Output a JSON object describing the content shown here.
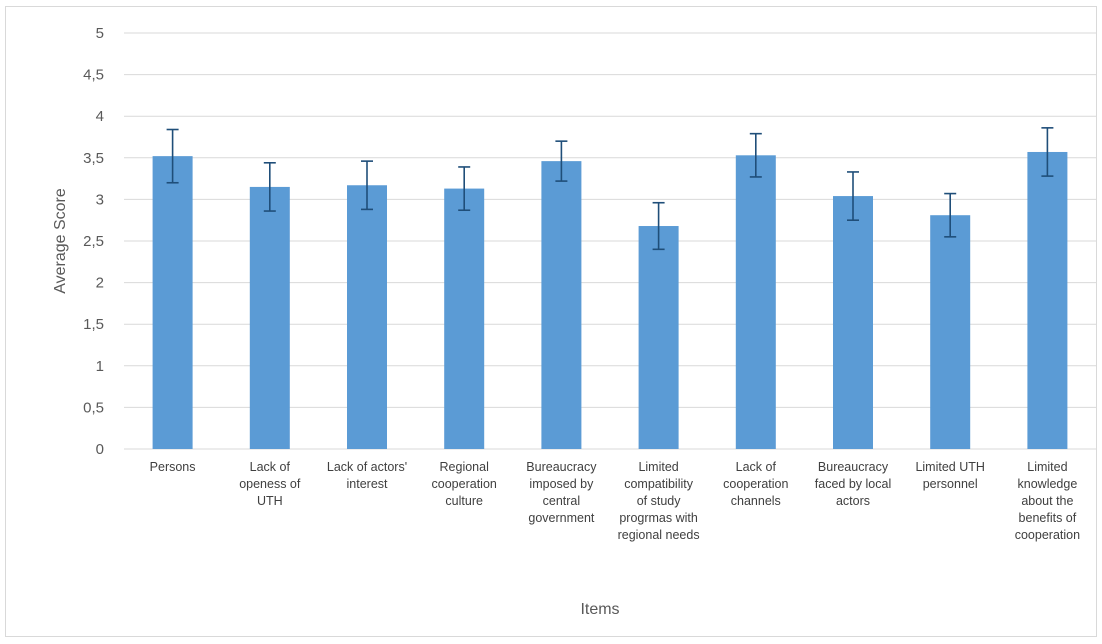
{
  "chart_data": {
    "type": "bar",
    "title": "",
    "xlabel": "Items",
    "ylabel": "Average Score",
    "ylim": [
      0,
      5
    ],
    "yticks": [
      "0",
      "0,5",
      "1",
      "1,5",
      "2",
      "2,5",
      "3",
      "3,5",
      "4",
      "4,5",
      "5"
    ],
    "grid": true,
    "legend": "none",
    "bar_color": "#5b9bd5",
    "error_bar_color": "#1f4e79",
    "categories": [
      [
        "Persons"
      ],
      [
        "Lack of",
        "openess of",
        "UTH"
      ],
      [
        "Lack of actors'",
        "interest"
      ],
      [
        "Regional",
        "cooperation",
        "culture"
      ],
      [
        "Bureaucracy",
        "imposed by",
        "central",
        "government"
      ],
      [
        "Limited",
        "compatibility",
        "of study",
        "progrmas with",
        "regional needs"
      ],
      [
        "Lack of",
        "cooperation",
        "channels"
      ],
      [
        "Bureaucracy",
        "faced by local",
        "actors"
      ],
      [
        "Limited UTH",
        "personnel"
      ],
      [
        "Limited",
        "knowledge",
        "about the",
        "benefits of",
        "cooperation"
      ]
    ],
    "values": [
      3.52,
      3.15,
      3.17,
      3.13,
      3.46,
      2.68,
      3.53,
      3.04,
      2.81,
      3.57
    ],
    "errors": [
      0.32,
      0.29,
      0.29,
      0.26,
      0.24,
      0.28,
      0.26,
      0.29,
      0.26,
      0.29
    ]
  }
}
